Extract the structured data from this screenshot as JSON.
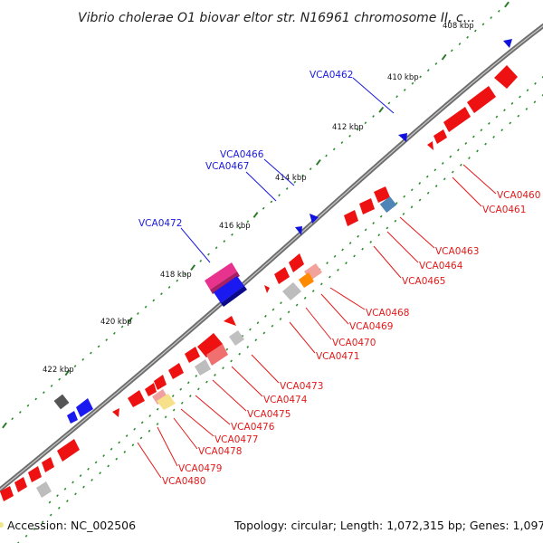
{
  "title": "Vibrio cholerae O1 biovar eltor str. N16961 chromosome II, c...",
  "footer": {
    "accession": "Accession: NC_002506",
    "summary": "Topology: circular; Length: 1,072,315 bp; Genes: 1,097"
  },
  "colors": {
    "forward_label": "#1a1adf",
    "reverse_label": "#e31a1a",
    "backbone": "#8c8c8c",
    "tick_dots": "#2e8b2e",
    "tick_dash": "#2a7a2a"
  },
  "ticks": [
    "408 kbp",
    "410 kbp",
    "412 kbp",
    "414 kbp",
    "416 kbp",
    "418 kbp",
    "420 kbp",
    "422 kbp"
  ],
  "labels_forward": [
    "VCA0462",
    "VCA0466",
    "VCA0467",
    "VCA0472"
  ],
  "labels_reverse": [
    "VCA0460",
    "VCA0461",
    "VCA0463",
    "VCA0464",
    "VCA0465",
    "VCA0468",
    "VCA0469",
    "VCA0470",
    "VCA0471",
    "VCA0473",
    "VCA0474",
    "VCA0475",
    "VCA0476",
    "VCA0477",
    "VCA0478",
    "VCA0479",
    "VCA0480"
  ]
}
